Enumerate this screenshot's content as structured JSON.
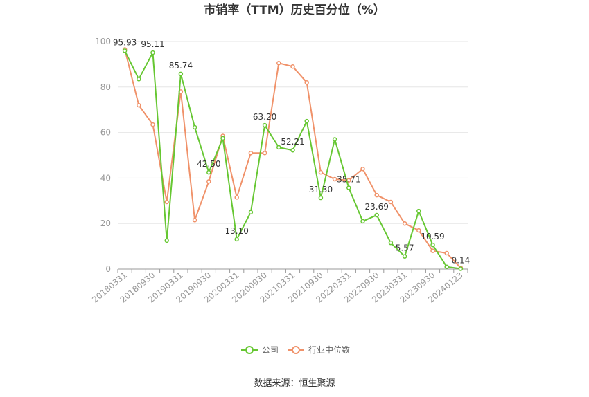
{
  "chart_data": {
    "type": "line",
    "title": "市销率（TTM）历史百分位（%）",
    "source": "数据来源：恒生聚源",
    "ylim": [
      0,
      100
    ],
    "y_ticks": [
      "0",
      "20",
      "40",
      "60",
      "80",
      "100"
    ],
    "x_tick_labels": [
      "20180331",
      "20180930",
      "20190331",
      "20190930",
      "20200331",
      "20200930",
      "20210331",
      "20210930",
      "20220331",
      "20220930",
      "20230331",
      "20230930",
      "20240123"
    ],
    "grid": true,
    "legend_position": "bottom",
    "colors": {
      "company": "#66c732",
      "industry": "#f0926a"
    },
    "series": [
      {
        "name": "公司",
        "values": [
          95.93,
          83.5,
          95.11,
          12.5,
          85.74,
          62.3,
          42.5,
          57.5,
          13.1,
          25.0,
          63.2,
          53.5,
          52.21,
          65.0,
          31.3,
          57.0,
          35.71,
          21.0,
          23.69,
          11.5,
          5.57,
          25.5,
          10.59,
          1.0,
          0.14
        ],
        "labels": [
          "95.93",
          "",
          "95.11",
          "",
          "85.74",
          "",
          "42.50",
          "",
          "13.10",
          "",
          "63.20",
          "",
          "52.21",
          "",
          "31.30",
          "",
          "35.71",
          "",
          "23.69",
          "",
          "5.57",
          "",
          "10.59",
          "",
          "0.14"
        ]
      },
      {
        "name": "行业中位数",
        "values": [
          96.5,
          72.0,
          63.5,
          29.5,
          78.0,
          21.5,
          38.5,
          58.5,
          31.5,
          51.0,
          51.0,
          90.5,
          89.0,
          82.0,
          42.5,
          39.5,
          39.0,
          44.0,
          32.5,
          29.5,
          20.0,
          17.0,
          8.0,
          7.0,
          0.5
        ]
      }
    ]
  }
}
